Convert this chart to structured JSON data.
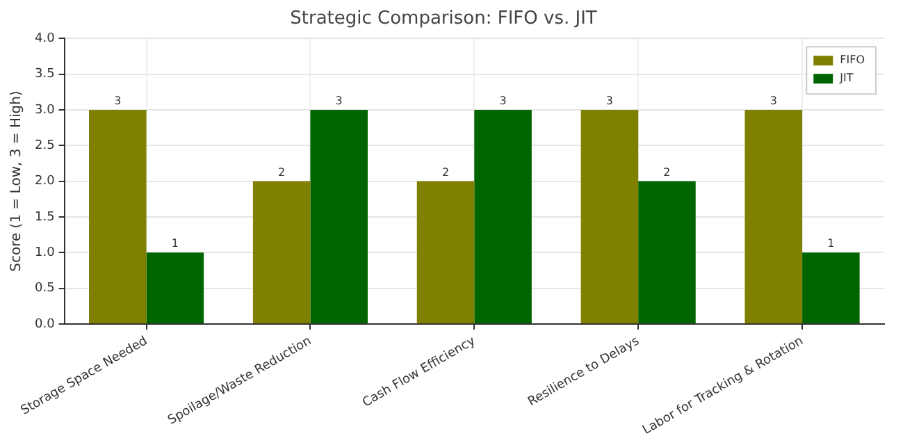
{
  "chart_data": {
    "type": "bar",
    "title": "Strategic Comparison: FIFO vs. JIT",
    "ylabel": "Score (1 = Low, 3 = High)",
    "categories": [
      "Storage Space Needed",
      "Spoilage/Waste Reduction",
      "Cash Flow Efficiency",
      "Resilience to Delays",
      "Labor for Tracking & Rotation"
    ],
    "series": [
      {
        "name": "FIFO",
        "color": "#808000",
        "values": [
          3,
          2,
          2,
          3,
          3
        ]
      },
      {
        "name": "JIT",
        "color": "#006400",
        "values": [
          1,
          3,
          3,
          2,
          1
        ]
      }
    ],
    "ylim": [
      0,
      4
    ],
    "yticks": [
      {
        "value": 0,
        "label": "0.0"
      },
      {
        "value": 0.5,
        "label": "0.5"
      },
      {
        "value": 1,
        "label": "1.0"
      },
      {
        "value": 1.5,
        "label": "1.5"
      },
      {
        "value": 2,
        "label": "2.0"
      },
      {
        "value": 2.5,
        "label": "2.5"
      },
      {
        "value": 3,
        "label": "3.0"
      },
      {
        "value": 3.5,
        "label": "3.5"
      },
      {
        "value": 4,
        "label": "4.0"
      }
    ],
    "grid": true,
    "legend": "top right",
    "data_labels": true
  }
}
